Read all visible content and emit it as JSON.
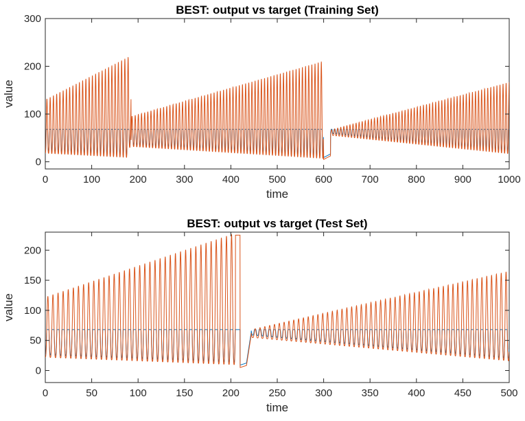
{
  "chart_data": [
    {
      "type": "line",
      "title": "BEST: output vs target (Training Set)",
      "xlabel": "time",
      "ylabel": "value",
      "xlim": [
        0,
        1000
      ],
      "ylim": [
        -15,
        300
      ],
      "xticks": [
        0,
        100,
        200,
        300,
        400,
        500,
        600,
        700,
        800,
        900,
        1000
      ],
      "yticks": [
        0,
        100,
        200,
        300
      ],
      "grid": false,
      "legend": "none",
      "series": [
        {
          "color": "#0072BD",
          "description_points": [
            [
              0,
              68
            ],
            [
              40,
              68
            ],
            [
              150,
              -5
            ],
            [
              180,
              -15
            ],
            [
              190,
              68
            ],
            [
              420,
              -5
            ],
            [
              510,
              -15
            ],
            [
              600,
              -15
            ],
            [
              620,
              68
            ],
            [
              1000,
              68
            ]
          ]
        },
        {
          "color": "#D95319",
          "description_points": [
            [
              0,
              140
            ],
            [
              180,
              235
            ],
            [
              185,
              95
            ],
            [
              600,
              255
            ],
            [
              615,
              5
            ],
            [
              620,
              70
            ],
            [
              1000,
              170
            ]
          ]
        }
      ]
    },
    {
      "type": "line",
      "title": "BEST: output vs target (Test Set)",
      "xlabel": "time",
      "ylabel": "value",
      "xlim": [
        0,
        500
      ],
      "ylim": [
        -20,
        230
      ],
      "xticks": [
        0,
        50,
        100,
        150,
        200,
        250,
        300,
        350,
        400,
        450,
        500
      ],
      "yticks": [
        0,
        50,
        100,
        150,
        200
      ],
      "grid": false,
      "legend": "none",
      "series": [
        {
          "color": "#0072BD",
          "description_points": [
            [
              0,
              70
            ],
            [
              10,
              70
            ],
            [
              215,
              -20
            ],
            [
              220,
              70
            ],
            [
              500,
              70
            ]
          ]
        },
        {
          "color": "#D95319",
          "description_points": [
            [
              0,
              125
            ],
            [
              205,
              225
            ],
            [
              215,
              5
            ],
            [
              220,
              65
            ],
            [
              500,
              165
            ]
          ]
        }
      ]
    }
  ]
}
